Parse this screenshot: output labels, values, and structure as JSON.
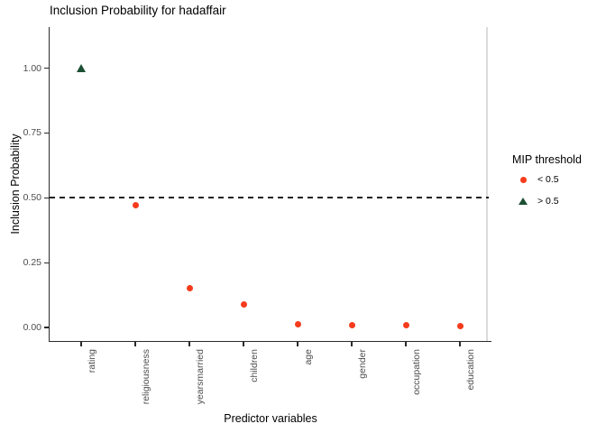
{
  "chart_data": {
    "type": "scatter",
    "title": "Inclusion Probability for hadaffair",
    "xlabel": "Predictor variables",
    "ylabel": "Inclusion Probability",
    "categories": [
      "rating",
      "religiousness",
      "yearsmarried",
      "children",
      "age",
      "gender",
      "occupation",
      "education"
    ],
    "values": [
      1.0,
      0.47,
      0.15,
      0.09,
      0.012,
      0.008,
      0.008,
      0.004
    ],
    "ylim": [
      0,
      1
    ],
    "yticks": [
      1.0,
      0.75,
      0.5,
      0.25,
      0.0
    ],
    "ytick_labels": [
      "1.00",
      "0.75",
      "0.50",
      "0.25",
      "0.00"
    ],
    "threshold": 0.5,
    "threshold_line_style": "dashed",
    "grid": false,
    "legend": {
      "title": "MIP threshold",
      "position": "right",
      "items": [
        {
          "label": "< 0.5",
          "shape": "circle",
          "color": "#f53b1c"
        },
        {
          "label": "> 0.5",
          "shape": "triangle",
          "color": "#1c4f33"
        }
      ]
    },
    "colors": {
      "below_threshold": "#f53b1c",
      "above_threshold": "#1c4f33",
      "axis_text": "#4d4d4d",
      "axis_line": "#2b2b2b"
    }
  }
}
